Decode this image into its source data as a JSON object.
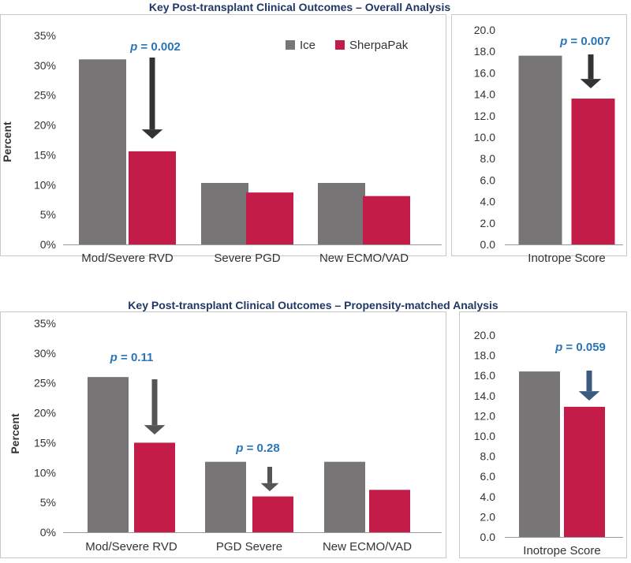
{
  "chart_data": [
    {
      "type": "bar",
      "title": "Key Post-transplant Clinical Outcomes – Overall Analysis",
      "ylabel": "Percent",
      "xlabel": "",
      "categories": [
        "Mod/Severe RVD",
        "Severe PGD",
        "New ECMO/VAD"
      ],
      "series": [
        {
          "name": "Ice",
          "values": [
            31.0,
            10.3,
            10.3
          ]
        },
        {
          "name": "SherpaPak",
          "values": [
            15.6,
            8.7,
            8.1
          ]
        }
      ],
      "ylim": [
        0,
        35
      ],
      "yticks": [
        "0%",
        "5%",
        "10%",
        "15%",
        "20%",
        "25%",
        "30%",
        "35%"
      ],
      "legend": "top-right",
      "annotations": [
        {
          "category": "Mod/Severe RVD",
          "text": "p = 0.002"
        }
      ]
    },
    {
      "type": "bar",
      "title": "",
      "ylabel": "",
      "categories": [
        "Inotrope Score"
      ],
      "series": [
        {
          "name": "Ice",
          "values": [
            17.6
          ]
        },
        {
          "name": "SherpaPak",
          "values": [
            13.6
          ]
        }
      ],
      "ylim": [
        0,
        20
      ],
      "yticks": [
        "0.0",
        "2.0",
        "4.0",
        "6.0",
        "8.0",
        "10.0",
        "12.0",
        "14.0",
        "16.0",
        "18.0",
        "20.0"
      ],
      "annotations": [
        {
          "category": "Inotrope Score",
          "text": "p = 0.007"
        }
      ]
    },
    {
      "type": "bar",
      "title": "Key Post-transplant Clinical Outcomes – Propensity-matched Analysis",
      "ylabel": "Percent",
      "categories": [
        "Mod/Severe RVD",
        "PGD Severe",
        "New ECMO/VAD"
      ],
      "series": [
        {
          "name": "Ice",
          "values": [
            26.0,
            11.8,
            11.8
          ]
        },
        {
          "name": "SherpaPak",
          "values": [
            15.0,
            6.0,
            7.1
          ]
        }
      ],
      "ylim": [
        0,
        35
      ],
      "yticks": [
        "0%",
        "5%",
        "10%",
        "15%",
        "20%",
        "25%",
        "30%",
        "35%"
      ],
      "annotations": [
        {
          "category": "Mod/Severe RVD",
          "text": "p = 0.11"
        },
        {
          "category": "PGD Severe",
          "text": "p = 0.28"
        }
      ]
    },
    {
      "type": "bar",
      "title": "",
      "ylabel": "",
      "categories": [
        "Inotrope Score"
      ],
      "series": [
        {
          "name": "Ice",
          "values": [
            16.4
          ]
        },
        {
          "name": "SherpaPak",
          "values": [
            12.9
          ]
        }
      ],
      "ylim": [
        0,
        20
      ],
      "yticks": [
        "0.0",
        "2.0",
        "4.0",
        "6.0",
        "8.0",
        "10.0",
        "12.0",
        "14.0",
        "16.0",
        "18.0",
        "20.0"
      ],
      "annotations": [
        {
          "category": "Inotrope Score",
          "text": "p = 0.059"
        }
      ]
    }
  ],
  "colors": {
    "ice": "#777575",
    "sherpapak": "#c41c48",
    "pvalue": "#2a74b8",
    "title": "#1f3864",
    "arrow1": "#333333",
    "arrow2": "#555555",
    "arrow3": "#3c5a80"
  }
}
